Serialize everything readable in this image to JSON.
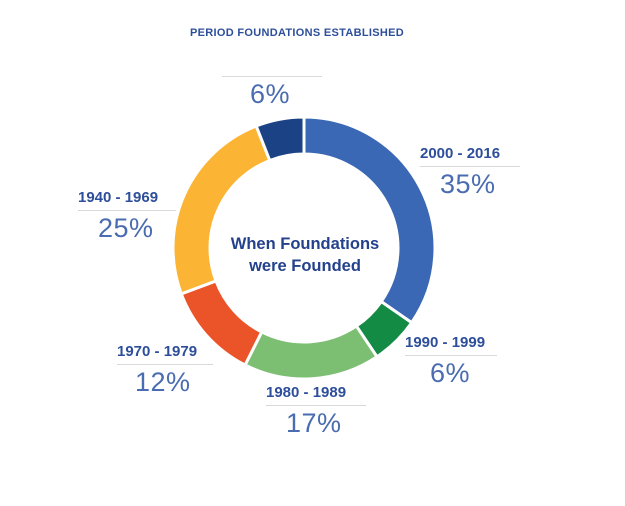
{
  "chart_data": {
    "type": "pie",
    "donut": true,
    "title": "PERIOD FOUNDATIONS ESTABLISHED",
    "center_label": [
      "When Foundations",
      "were Founded"
    ],
    "slices": [
      {
        "label": "2000 - 2016",
        "value": 35,
        "display": "35%",
        "color": "#3b68b4"
      },
      {
        "label": "1990 - 1999",
        "value": 6,
        "display": "6%",
        "color": "#138b45"
      },
      {
        "label": "1980 - 1989",
        "value": 17,
        "display": "17%",
        "color": "#7cbf72"
      },
      {
        "label": "1970 - 1979",
        "value": 12,
        "display": "12%",
        "color": "#ea5428"
      },
      {
        "label": "1940 - 1969",
        "value": 25,
        "display": "25%",
        "color": "#fbb434"
      },
      {
        "label": "",
        "value": 6,
        "display": "6%",
        "color": "#1c4286"
      }
    ]
  }
}
